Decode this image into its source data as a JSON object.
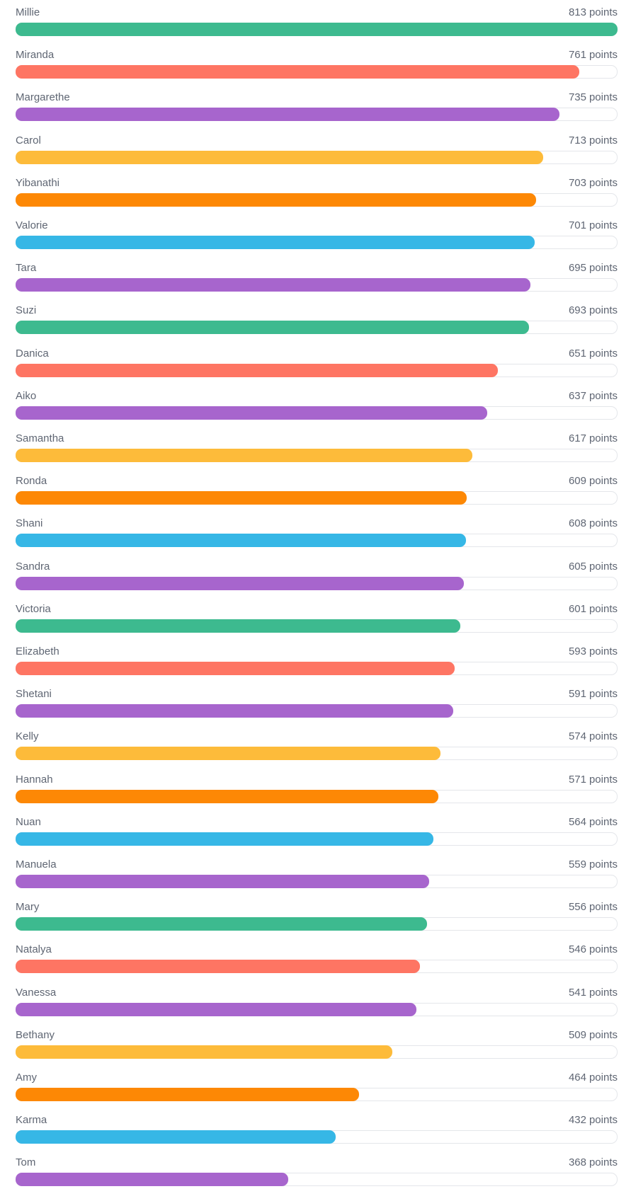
{
  "unit_label": "points",
  "max_points": 813,
  "colors": {
    "green": "#3dba8f",
    "coral": "#fe7563",
    "purple": "#a765cd",
    "yellow": "#fdbb3a",
    "orange": "#fd8805",
    "blue": "#36b7e6"
  },
  "entries": [
    {
      "name": "Millie",
      "points": "813",
      "color": "#3dba8f"
    },
    {
      "name": "Miranda",
      "points": "761",
      "color": "#fe7563"
    },
    {
      "name": "Margarethe",
      "points": "735",
      "color": "#a765cd"
    },
    {
      "name": "Carol",
      "points": "713",
      "color": "#fdbb3a"
    },
    {
      "name": "Yibanathi",
      "points": "703",
      "color": "#fd8805"
    },
    {
      "name": "Valorie",
      "points": "701",
      "color": "#36b7e6"
    },
    {
      "name": "Tara",
      "points": "695",
      "color": "#a765cd"
    },
    {
      "name": "Suzi",
      "points": "693",
      "color": "#3dba8f"
    },
    {
      "name": "Danica",
      "points": "651",
      "color": "#fe7563"
    },
    {
      "name": "Aiko",
      "points": "637",
      "color": "#a765cd"
    },
    {
      "name": "Samantha",
      "points": "617",
      "color": "#fdbb3a"
    },
    {
      "name": "Ronda",
      "points": "609",
      "color": "#fd8805"
    },
    {
      "name": "Shani",
      "points": "608",
      "color": "#36b7e6"
    },
    {
      "name": "Sandra",
      "points": "605",
      "color": "#a765cd"
    },
    {
      "name": "Victoria",
      "points": "601",
      "color": "#3dba8f"
    },
    {
      "name": "Elizabeth",
      "points": "593",
      "color": "#fe7563"
    },
    {
      "name": "Shetani",
      "points": "591",
      "color": "#a765cd"
    },
    {
      "name": "Kelly",
      "points": "574",
      "color": "#fdbb3a"
    },
    {
      "name": "Hannah",
      "points": "571",
      "color": "#fd8805"
    },
    {
      "name": "Nuan",
      "points": "564",
      "color": "#36b7e6"
    },
    {
      "name": "Manuela",
      "points": "559",
      "color": "#a765cd"
    },
    {
      "name": "Mary",
      "points": "556",
      "color": "#3dba8f"
    },
    {
      "name": "Natalya",
      "points": "546",
      "color": "#fe7563"
    },
    {
      "name": "Vanessa",
      "points": "541",
      "color": "#a765cd"
    },
    {
      "name": "Bethany",
      "points": "509",
      "color": "#fdbb3a"
    },
    {
      "name": "Amy",
      "points": "464",
      "color": "#fd8805"
    },
    {
      "name": "Karma",
      "points": "432",
      "color": "#36b7e6"
    },
    {
      "name": "Tom",
      "points": "368",
      "color": "#a765cd"
    }
  ]
}
